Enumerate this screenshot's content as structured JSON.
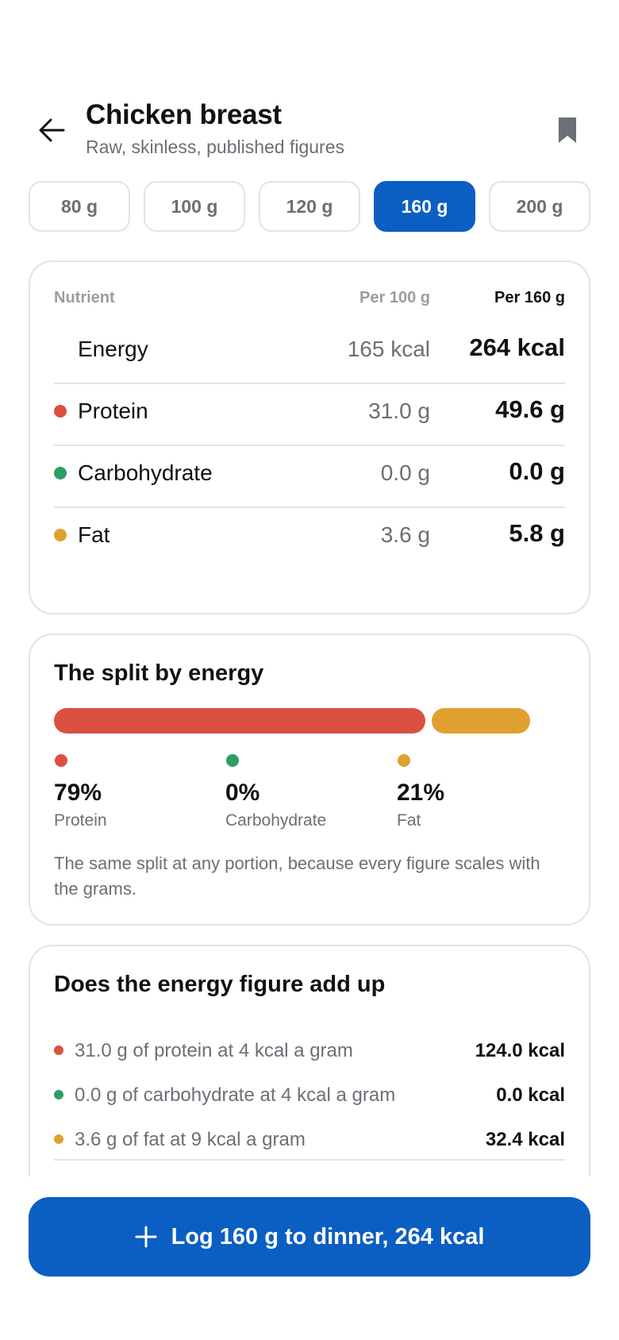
{
  "header": {
    "title": "Chicken breast",
    "subtitle": "Raw, skinless, published figures",
    "back_icon": "arrow-left-icon",
    "bookmark_icon": "bookmark-icon"
  },
  "portions": {
    "options": [
      "80 g",
      "100 g",
      "120 g",
      "160 g",
      "200 g"
    ],
    "selected": "160 g"
  },
  "nutrients": {
    "headers": {
      "nutrient": "Nutrient",
      "per100": "Per 100 g",
      "perPortion": "Per 160 g"
    },
    "rows": [
      {
        "name": "Energy",
        "per100": "165 kcal",
        "perPortion": "264 kcal",
        "color": ""
      },
      {
        "name": "Protein",
        "per100": "31.0 g",
        "perPortion": "49.6 g",
        "color": "#dc5040"
      },
      {
        "name": "Carbohydrate",
        "per100": "0.0 g",
        "perPortion": "0.0 g",
        "color": "#2e9e63"
      },
      {
        "name": "Fat",
        "per100": "3.6 g",
        "perPortion": "5.8 g",
        "color": "#e0a030"
      }
    ]
  },
  "split": {
    "title": "The split by energy",
    "items": [
      {
        "label": "Protein",
        "pct": "79%",
        "value": 79,
        "color": "#dc5040"
      },
      {
        "label": "Carbohydrate",
        "pct": "0%",
        "value": 0,
        "color": "#2e9e63"
      },
      {
        "label": "Fat",
        "pct": "21%",
        "value": 21,
        "color": "#e0a030"
      }
    ],
    "note": "The same split at any portion, because every figure scales with the grams."
  },
  "check": {
    "title": "Does the energy figure add up",
    "rows": [
      {
        "text": "31.0 g of protein at 4 kcal a gram",
        "value": "124.0 kcal",
        "color": "#dc5040"
      },
      {
        "text": "0.0 g of carbohydrate at 4 kcal a gram",
        "value": "0.0 kcal",
        "color": "#2e9e63"
      },
      {
        "text": "3.6 g of fat at 9 kcal a gram",
        "value": "32.4 kcal",
        "color": "#e0a030"
      }
    ]
  },
  "cta": {
    "label": "Log 160 g to dinner, 264 kcal",
    "icon": "plus-icon"
  },
  "colors": {
    "accent": "#0b5fc2",
    "protein": "#dc5040",
    "carbohydrate": "#2e9e63",
    "fat": "#e0a030"
  }
}
